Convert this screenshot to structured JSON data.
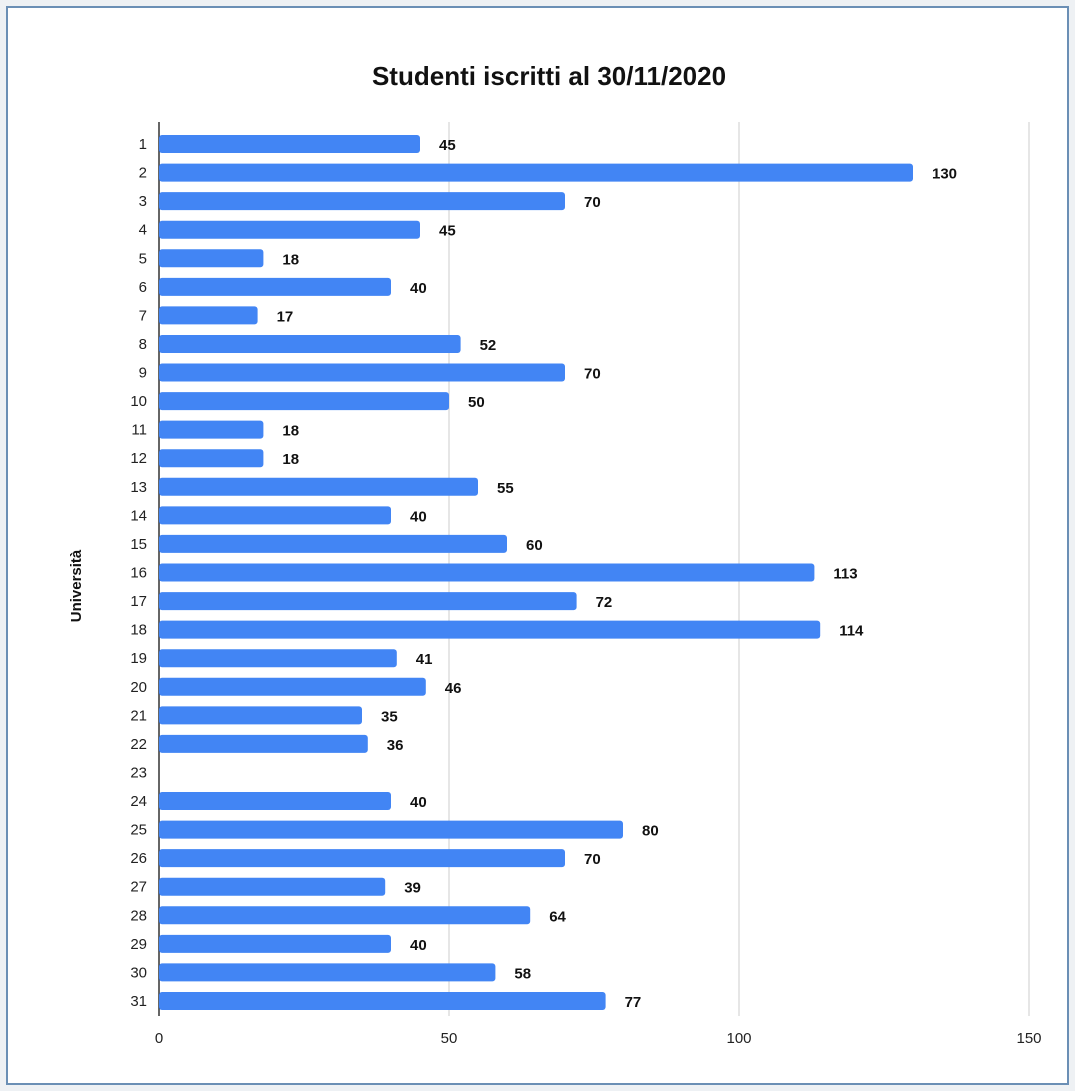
{
  "chart_data": {
    "type": "bar",
    "orientation": "horizontal",
    "title": "Studenti iscritti al 30/11/2020",
    "ylabel": "Università",
    "xlabel": "",
    "xlim": [
      0,
      150
    ],
    "xticks": [
      0,
      50,
      100,
      150
    ],
    "grid": true,
    "bar_color": "#4285f4",
    "categories": [
      "1",
      "2",
      "3",
      "4",
      "5",
      "6",
      "7",
      "8",
      "9",
      "10",
      "11",
      "12",
      "13",
      "14",
      "15",
      "16",
      "17",
      "18",
      "19",
      "20",
      "21",
      "22",
      "23",
      "24",
      "25",
      "26",
      "27",
      "28",
      "29",
      "30",
      "31"
    ],
    "values": [
      45,
      130,
      70,
      45,
      18,
      40,
      17,
      52,
      70,
      50,
      18,
      18,
      55,
      40,
      60,
      113,
      72,
      114,
      41,
      46,
      35,
      36,
      null,
      40,
      80,
      70,
      39,
      64,
      40,
      58,
      77
    ]
  }
}
